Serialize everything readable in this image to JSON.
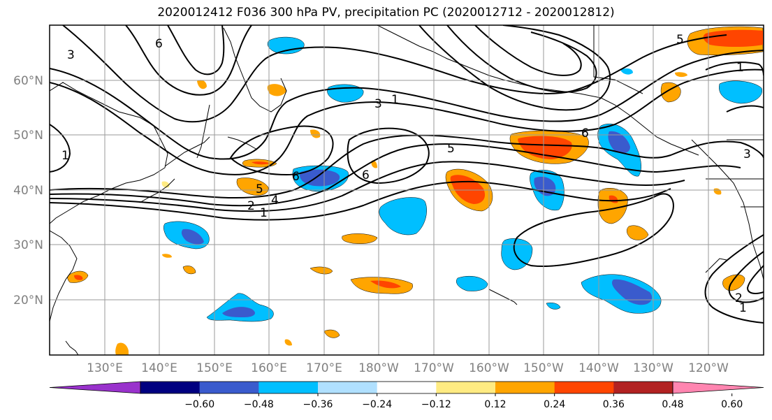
{
  "title": "2020012412 F036 300 hPa PV, precipitation PC (2020012712 - 2020012812)",
  "lat_labels": [
    "60°N",
    "50°N",
    "40°N",
    "30°N",
    "20°N"
  ],
  "lon_labels": [
    "130°E",
    "140°E",
    "150°E",
    "160°E",
    "170°E",
    "180°W",
    "170°W",
    "160°W",
    "150°W",
    "140°W",
    "130°W",
    "120°W"
  ],
  "colorbar": {
    "ticks": [
      "−0.60",
      "−0.48",
      "−0.36",
      "−0.24",
      "−0.12",
      "0.12",
      "0.24",
      "0.36",
      "0.48",
      "0.60"
    ],
    "colors": [
      "#9932cc",
      "#000080",
      "#3a5bcd",
      "#00bfff",
      "#b0e0ff",
      "#ffffff",
      "#ffeb82",
      "#ffa500",
      "#ff4500",
      "#b22222",
      "#ff85b0"
    ]
  },
  "contour_labels": [
    "1",
    "2",
    "3",
    "4",
    "5",
    "6"
  ],
  "colors": {
    "strong_negative": "#3a5bcd",
    "negative": "#00bfff",
    "weak_positive": "#ffeb82",
    "positive": "#ffa500",
    "strong_positive": "#ff4500"
  }
}
